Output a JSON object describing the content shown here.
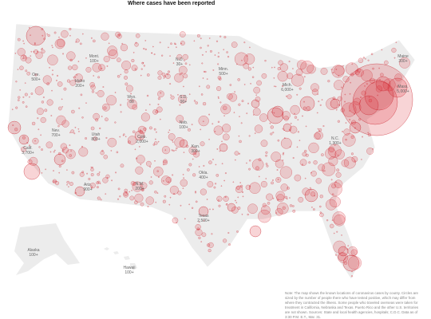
{
  "title": "Where cases have been reported",
  "states": [
    {
      "name": "Mont.",
      "count": "100+"
    },
    {
      "name": "N.D.",
      "count": "30+"
    },
    {
      "name": "Minn.",
      "count": "500+"
    },
    {
      "name": "Maine",
      "count": "300+"
    },
    {
      "name": "Ore.",
      "count": "500+"
    },
    {
      "name": "Idaho",
      "count": "200+"
    },
    {
      "name": "Wyo.",
      "count": "80"
    },
    {
      "name": "S.D.",
      "count": "90+"
    },
    {
      "name": "Mich.",
      "count": "6,000+"
    },
    {
      "name": "Mass.",
      "count": "5,000+"
    },
    {
      "name": "Nev.",
      "count": "700+"
    },
    {
      "name": "Neb.",
      "count": "100+"
    },
    {
      "name": "Calif.",
      "count": "3,700+"
    },
    {
      "name": "Utah",
      "count": "800+"
    },
    {
      "name": "Colo.",
      "count": "2,000+"
    },
    {
      "name": "Kan.",
      "count": "300+"
    },
    {
      "name": "N.C.",
      "count": "1,300+"
    },
    {
      "name": "Ariz.",
      "count": "900+"
    },
    {
      "name": "N.M.",
      "count": "200+"
    },
    {
      "name": "Okla.",
      "count": "400+"
    },
    {
      "name": "Texas",
      "count": "2,500+"
    },
    {
      "name": "Alaska",
      "count": "100+"
    },
    {
      "name": "Hawaii",
      "count": "100+"
    }
  ],
  "note": "Note: The map shows the known locations of coronavirus cases by county. Circles are sized by the number of people there who have tested positive, which may differ from where they contracted the illness. Some people who traveled overseas were taken for treatment in California, Nebraska and Texas. Puerto Rico and the other U.S. territories are not shown. Sources: State and local health agencies, hospitals; C.D.C. Data as of 3:30 P.M. E.T., Mar. 31."
}
